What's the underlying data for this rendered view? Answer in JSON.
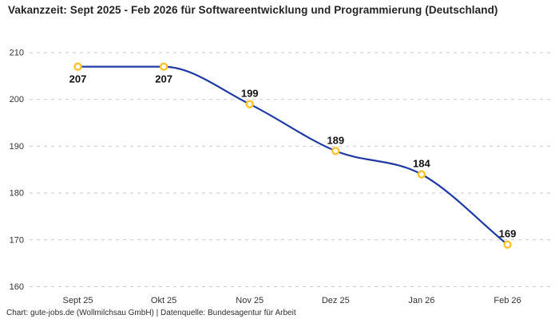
{
  "chart_data": {
    "type": "line",
    "title": "Vakanzzeit: Sept 2025 - Feb 2026 für Softwareentwicklung und Programmierung (Deutschland)",
    "categories": [
      "Sept 25",
      "Okt 25",
      "Nov 25",
      "Dez 25",
      "Jan 26",
      "Feb 26"
    ],
    "series": [
      {
        "name": "Vakanzzeit",
        "values": [
          207,
          207,
          199,
          189,
          184,
          169
        ]
      }
    ],
    "label_positions": [
      "below",
      "below",
      "above",
      "above",
      "above",
      "above"
    ],
    "xlabel": "",
    "ylabel": "",
    "ylim": [
      160,
      210
    ],
    "yticks": [
      160,
      170,
      180,
      190,
      200,
      210
    ],
    "grid": "horizontal-dashed",
    "legend": "none",
    "smooth": true,
    "colors": {
      "line": "#1f3aa5",
      "marker_ring": "#fcc32b",
      "marker_fill": "#ffffff",
      "gridline": "#c9c9c9",
      "tick_label": "#333333",
      "data_label": "#111111"
    }
  },
  "footer": {
    "text": "Chart: gute-jobs.de (Wollmilchsau GmbH) | Datenquelle: Bundesagentur für Arbeit"
  }
}
